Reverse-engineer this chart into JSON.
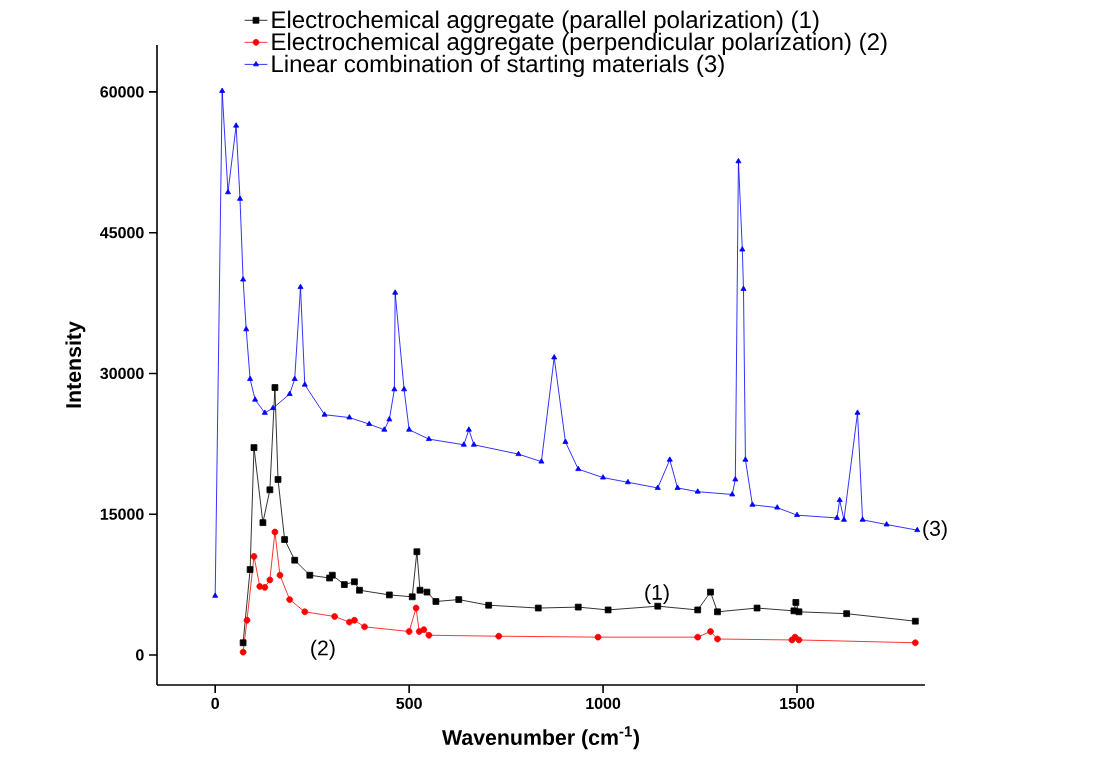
{
  "chart_data": {
    "type": "line",
    "xlabel": "Wavenumber (cm$^{-1}$)",
    "ylabel": "Intensity",
    "xlim": [
      -150,
      1830
    ],
    "ylim": [
      -3200,
      65000
    ],
    "xticks": [
      0,
      500,
      1000,
      1500
    ],
    "yticks": [
      0,
      15000,
      30000,
      45000,
      60000
    ],
    "grid": false,
    "legend": "top",
    "line_style": "solid",
    "series": [
      {
        "name": "Electrochemical aggregate (parallel  polarization) (1)",
        "color": "#000000",
        "marker": "square",
        "x": [
          72,
          90,
          100,
          123,
          141,
          154,
          162,
          179,
          205,
          244,
          295,
          302,
          333,
          359,
          372,
          449,
          508,
          520,
          528,
          546,
          569,
          628,
          705,
          833,
          936,
          1013,
          1141,
          1244,
          1277,
          1295,
          1397,
          1492,
          1497,
          1505,
          1628,
          1805
        ],
        "values": [
          1300,
          9100,
          22100,
          14100,
          17600,
          28500,
          18700,
          12300,
          10100,
          8500,
          8200,
          8500,
          7500,
          7800,
          6900,
          6400,
          6200,
          11000,
          6900,
          6700,
          5700,
          5900,
          5300,
          5000,
          5100,
          4800,
          5200,
          4800,
          6700,
          4600,
          5000,
          4700,
          5600,
          4600,
          4400,
          3600
        ]
      },
      {
        "name": "Electrochemical aggregate (perpendicular polarization) (2)",
        "color": "#ff0000",
        "marker": "circle",
        "x": [
          72,
          82,
          100,
          115,
          128,
          141,
          154,
          167,
          192,
          231,
          308,
          346,
          359,
          385,
          500,
          518,
          526,
          538,
          551,
          731,
          987,
          1244,
          1277,
          1295,
          1487,
          1495,
          1505,
          1805
        ],
        "values": [
          300,
          3700,
          10500,
          7300,
          7200,
          8000,
          13100,
          8500,
          5900,
          4600,
          4100,
          3500,
          3700,
          3000,
          2500,
          5000,
          2500,
          2700,
          2100,
          2000,
          1900,
          1900,
          2500,
          1700,
          1600,
          1900,
          1600,
          1300
        ]
      },
      {
        "name": "Linear combination of starting materials   (3)",
        "color": "#0000ff",
        "marker": "triangle",
        "x": [
          0,
          18,
          33,
          54,
          64,
          72,
          80,
          90,
          103,
          128,
          149,
          192,
          205,
          220,
          231,
          282,
          346,
          397,
          436,
          449,
          462,
          464,
          487,
          500,
          551,
          641,
          654,
          667,
          782,
          841,
          874,
          903,
          936,
          1000,
          1064,
          1141,
          1172,
          1192,
          1244,
          1333,
          1341,
          1349,
          1359,
          1362,
          1367,
          1385,
          1449,
          1500,
          1603,
          1610,
          1621,
          1656,
          1669,
          1731,
          1810
        ],
        "values": [
          6300,
          60100,
          49300,
          56400,
          48600,
          40000,
          34700,
          29400,
          27200,
          25800,
          26300,
          27800,
          29400,
          39200,
          28800,
          25600,
          25300,
          24600,
          24000,
          25100,
          28300,
          38600,
          28300,
          24000,
          23000,
          22400,
          24000,
          22400,
          21400,
          20600,
          31700,
          22700,
          19800,
          18900,
          18400,
          17800,
          20800,
          17800,
          17400,
          17100,
          18700,
          52600,
          43200,
          39000,
          20800,
          16000,
          15700,
          14900,
          14600,
          16500,
          14400,
          25800,
          14400,
          13900,
          13300
        ]
      }
    ],
    "annotations": [
      "(1)",
      "(2)",
      {
        "text": "(3)",
        "x": 1810,
        "y": 13300
      }
    ]
  }
}
